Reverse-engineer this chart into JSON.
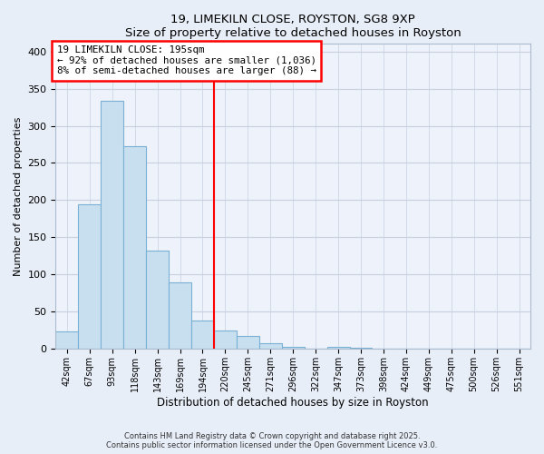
{
  "title": "19, LIMEKILN CLOSE, ROYSTON, SG8 9XP",
  "subtitle": "Size of property relative to detached houses in Royston",
  "xlabel": "Distribution of detached houses by size in Royston",
  "ylabel": "Number of detached properties",
  "bin_labels": [
    "42sqm",
    "67sqm",
    "93sqm",
    "118sqm",
    "143sqm",
    "169sqm",
    "194sqm",
    "220sqm",
    "245sqm",
    "271sqm",
    "296sqm",
    "322sqm",
    "347sqm",
    "373sqm",
    "398sqm",
    "424sqm",
    "449sqm",
    "475sqm",
    "500sqm",
    "526sqm",
    "551sqm"
  ],
  "bar_values": [
    24,
    194,
    333,
    272,
    132,
    90,
    38,
    25,
    17,
    8,
    3,
    0,
    3,
    2,
    0,
    0,
    0,
    0,
    0,
    0,
    1
  ],
  "bar_color": "#c8dff0",
  "bar_edge_color": "#7ab0d4",
  "vline_x_index": 6,
  "vline_color": "red",
  "annotation_title": "19 LIMEKILN CLOSE: 195sqm",
  "annotation_line1": "← 92% of detached houses are smaller (1,036)",
  "annotation_line2": "8% of semi-detached houses are larger (88) →",
  "annotation_box_edge": "red",
  "ylim": [
    0,
    410
  ],
  "yticks": [
    0,
    50,
    100,
    150,
    200,
    250,
    300,
    350,
    400
  ],
  "footer1": "Contains HM Land Registry data © Crown copyright and database right 2025.",
  "footer2": "Contains public sector information licensed under the Open Government Licence v3.0.",
  "bg_color": "#e8eef8",
  "plot_bg_color": "#eef2fa",
  "grid_color": "#c8d0e0"
}
